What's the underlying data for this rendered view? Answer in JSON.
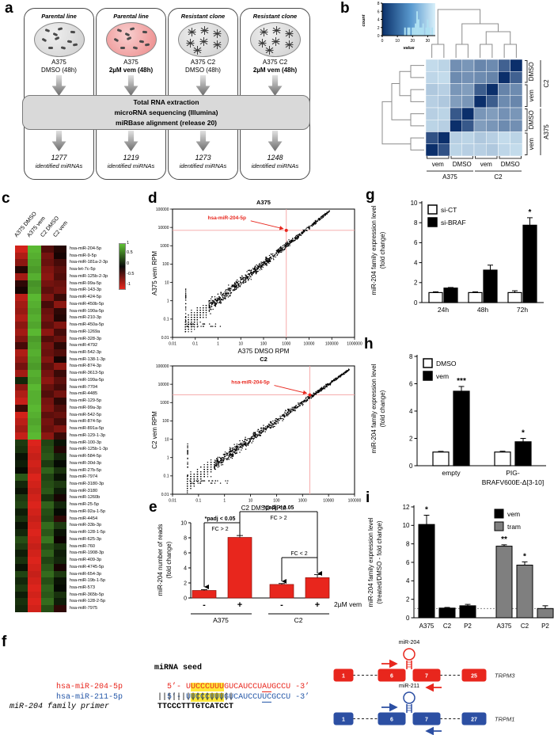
{
  "panels": {
    "a": "a",
    "b": "b",
    "c": "c",
    "d": "d",
    "e": "e",
    "f": "f",
    "g": "g",
    "h": "h",
    "i": "i"
  },
  "panel_a": {
    "columns": [
      {
        "title": "Parental line",
        "cell": "A375",
        "treatment": "DMSO (48h)",
        "treatment_bold": false,
        "dish": "parental",
        "dish_color": "grey",
        "count": "1277",
        "count_label": "identified miRNAs"
      },
      {
        "title": "Parental line",
        "cell": "A375",
        "treatment": "2µM vem (48h)",
        "treatment_bold": true,
        "dish": "parental",
        "dish_color": "pink",
        "count": "1219",
        "count_label": "identified miRNAs"
      },
      {
        "title": "Resistant clone",
        "cell": "A375 C2",
        "treatment": "DMSO (48h)",
        "treatment_bold": false,
        "dish": "resistant",
        "dish_color": "grey",
        "count": "1273",
        "count_label": "identified miRNAs"
      },
      {
        "title": "Resistant clone",
        "cell": "A375 C2",
        "treatment": "2µM vem (48h)",
        "treatment_bold": true,
        "dish": "resistant",
        "dish_color": "grey",
        "count": "1248",
        "count_label": "identified miRNAs"
      }
    ],
    "process_box": [
      "Total RNA extraction",
      "microRNA sequencing (Illumina)",
      "miRBase alignment (release 20)"
    ]
  },
  "panel_b": {
    "color_key": {
      "count_label": "count",
      "value_label": "value",
      "count_ticks": [
        0,
        2,
        4,
        6,
        8
      ],
      "value_ticks": [
        0,
        10,
        20,
        30
      ],
      "value_max": 35,
      "count_max": 8,
      "histogram": [
        [
          15,
          2
        ],
        [
          17,
          2
        ],
        [
          18,
          2
        ],
        [
          20,
          2
        ],
        [
          21,
          2
        ],
        [
          22,
          3
        ],
        [
          23,
          6
        ],
        [
          24,
          4
        ],
        [
          25,
          2
        ],
        [
          26,
          2
        ],
        [
          27,
          3
        ],
        [
          29,
          2
        ],
        [
          30,
          4
        ],
        [
          31,
          2
        ],
        [
          33,
          2
        ]
      ]
    },
    "matrix": [
      [
        0.25,
        0.28,
        0.58,
        0.55,
        0.62,
        0.6,
        0.78,
        1.0
      ],
      [
        0.27,
        0.25,
        0.6,
        0.57,
        0.6,
        0.63,
        1.0,
        0.78
      ],
      [
        0.33,
        0.3,
        0.55,
        0.52,
        0.8,
        1.0,
        0.63,
        0.6
      ],
      [
        0.3,
        0.33,
        0.52,
        0.55,
        1.0,
        0.8,
        0.6,
        0.62
      ],
      [
        0.3,
        0.28,
        0.82,
        1.0,
        0.55,
        0.52,
        0.57,
        0.55
      ],
      [
        0.28,
        0.3,
        1.0,
        0.82,
        0.52,
        0.55,
        0.6,
        0.58
      ],
      [
        0.85,
        1.0,
        0.3,
        0.28,
        0.33,
        0.3,
        0.25,
        0.28
      ],
      [
        1.0,
        0.85,
        0.28,
        0.3,
        0.3,
        0.33,
        0.27,
        0.25
      ]
    ],
    "col_pair_labels": [
      "vem",
      "DMSO",
      "vem",
      "DMSO"
    ],
    "col_group_labels": [
      "A375",
      "C2"
    ],
    "row_pair_labels": [
      "DMSO",
      "vem",
      "DMSO",
      "vem"
    ],
    "row_group_labels": [
      "C2",
      "A375"
    ]
  },
  "panel_c": {
    "col_labels": [
      "A375 DMSO",
      "A375 vem",
      "C2 DMSO",
      "C2 vem"
    ],
    "scale_ticks": [
      "1",
      "0.5",
      "0",
      "-0.5",
      "-1"
    ],
    "rows": [
      {
        "n": "hsa-miR-204-5p",
        "v": [
          -0.9,
          0.95,
          -0.35,
          -0.15
        ]
      },
      {
        "n": "hsa-miR-9-5p",
        "v": [
          -0.75,
          0.9,
          -0.5,
          -0.1
        ]
      },
      {
        "n": "hsa-miR-181a-2-3p",
        "v": [
          -0.6,
          0.85,
          -0.45,
          -0.3
        ]
      },
      {
        "n": "hsa-let-7c-5p",
        "v": [
          -0.15,
          0.8,
          -0.55,
          -0.4
        ]
      },
      {
        "n": "hsa-miR-125b-2-3p",
        "v": [
          -0.7,
          0.9,
          -0.6,
          -0.35
        ]
      },
      {
        "n": "hsa-miR-99a-5p",
        "v": [
          -0.2,
          0.75,
          -0.5,
          -0.45
        ]
      },
      {
        "n": "hsa-miR-143-3p",
        "v": [
          -0.1,
          0.8,
          -0.4,
          -0.5
        ]
      },
      {
        "n": "hsa-miR-424-5p",
        "v": [
          -0.8,
          0.95,
          -0.55,
          -0.25
        ]
      },
      {
        "n": "hsa-miR-450b-5p",
        "v": [
          -0.7,
          0.9,
          -0.3,
          -0.6
        ]
      },
      {
        "n": "hsa-miR-190a-5p",
        "v": [
          -0.65,
          0.85,
          -0.45,
          -0.2
        ]
      },
      {
        "n": "hsa-miR-210-3p",
        "v": [
          -0.75,
          0.9,
          -0.5,
          -0.15
        ]
      },
      {
        "n": "hsa-miR-450a-5p",
        "v": [
          -0.6,
          0.85,
          -0.4,
          -0.55
        ]
      },
      {
        "n": "hsa-miR-1269a",
        "v": [
          -0.7,
          0.95,
          -0.6,
          -0.3
        ]
      },
      {
        "n": "hsa-miR-328-3p",
        "v": [
          -0.55,
          0.8,
          -0.35,
          -0.45
        ]
      },
      {
        "n": "hsa-miR-4792",
        "v": [
          -0.3,
          0.85,
          -0.5,
          -0.2
        ]
      },
      {
        "n": "hsa-miR-542-3p",
        "v": [
          -0.75,
          0.9,
          -0.45,
          -0.35
        ]
      },
      {
        "n": "hsa-miR-138-1-3p",
        "v": [
          -0.65,
          0.85,
          -0.55,
          -0.1
        ]
      },
      {
        "n": "hsa-miR-874-3p",
        "v": [
          -0.5,
          0.8,
          -0.4,
          -0.6
        ]
      },
      {
        "n": "hsa-miR-3613-5p",
        "v": [
          -0.7,
          0.9,
          -0.5,
          -0.25
        ]
      },
      {
        "n": "hsa-miR-199a-5p",
        "v": [
          0.2,
          0.85,
          -0.6,
          -0.4
        ]
      },
      {
        "n": "hsa-miR-7704",
        "v": [
          -0.6,
          0.95,
          -0.45,
          -0.3
        ]
      },
      {
        "n": "hsa-miR-4485",
        "v": [
          -0.75,
          0.9,
          -0.35,
          -0.5
        ]
      },
      {
        "n": "hsa-miR-129-5p",
        "v": [
          -0.85,
          0.9,
          -0.5,
          -0.2
        ]
      },
      {
        "n": "hsa-miR-99a-3p",
        "v": [
          -0.25,
          0.95,
          -0.55,
          -0.35
        ]
      },
      {
        "n": "hsa-miR-542-5p",
        "v": [
          -0.9,
          0.9,
          -0.4,
          -0.45
        ]
      },
      {
        "n": "hsa-miR-874-5p",
        "v": [
          -0.8,
          0.85,
          -0.5,
          -0.3
        ]
      },
      {
        "n": "hsa-miR-891a-5p",
        "v": [
          -0.7,
          0.9,
          -0.45,
          -0.55
        ]
      },
      {
        "n": "hsa-miR-129-1-3p",
        "v": [
          -0.85,
          0.95,
          -0.6,
          -0.25
        ]
      },
      {
        "n": "hsa-miR-100-3p",
        "v": [
          0.3,
          -0.95,
          0.35,
          0.1
        ]
      },
      {
        "n": "hsa-miR-125b-1-3p",
        "v": [
          0.25,
          -0.9,
          0.4,
          -0.15
        ]
      },
      {
        "n": "hsa-miR-584-5p",
        "v": [
          0.1,
          -0.85,
          0.45,
          0.2
        ]
      },
      {
        "n": "hsa-miR-30d-3p",
        "v": [
          0.15,
          -0.9,
          0.3,
          0.05
        ]
      },
      {
        "n": "hsa-miR-27b-5p",
        "v": [
          0.05,
          -0.85,
          0.5,
          0.25
        ]
      },
      {
        "n": "hsa-miR-7974",
        "v": [
          0.45,
          -0.95,
          0.35,
          0.1
        ]
      },
      {
        "n": "hsa-miR-3180-3p",
        "v": [
          0.2,
          -0.9,
          0.4,
          0.3
        ]
      },
      {
        "n": "hsa-miR-3180",
        "v": [
          0.1,
          -0.85,
          0.45,
          0.15
        ]
      },
      {
        "n": "hsa-miR-1260b",
        "v": [
          0.3,
          -0.9,
          0.25,
          -0.1
        ]
      },
      {
        "n": "hsa-miR-25-5p",
        "v": [
          0.35,
          -0.95,
          0.5,
          0.2
        ]
      },
      {
        "n": "hsa-miR-92a-1-5p",
        "v": [
          0.15,
          -0.9,
          0.4,
          0.05
        ]
      },
      {
        "n": "hsa-miR-4454",
        "v": [
          0.25,
          -0.85,
          0.35,
          -0.2
        ]
      },
      {
        "n": "hsa-miR-33b-3p",
        "v": [
          0.1,
          -0.9,
          0.55,
          0.3
        ]
      },
      {
        "n": "hsa-miR-128-1-5p",
        "v": [
          0.2,
          -0.95,
          0.45,
          0.1
        ]
      },
      {
        "n": "hsa-miR-625-3p",
        "v": [
          0.4,
          -0.9,
          0.6,
          -0.05
        ]
      },
      {
        "n": "hsa-miR-760",
        "v": [
          0.3,
          -0.85,
          0.4,
          0.25
        ]
      },
      {
        "n": "hsa-miR-1908-3p",
        "v": [
          0.15,
          -0.9,
          0.5,
          0.15
        ]
      },
      {
        "n": "hsa-miR-409-3p",
        "v": [
          0.25,
          -0.95,
          0.35,
          0.2
        ]
      },
      {
        "n": "hsa-miR-4745-5p",
        "v": [
          0.1,
          -0.9,
          0.45,
          -0.1
        ]
      },
      {
        "n": "hsa-miR-654-3p",
        "v": [
          0.35,
          -0.85,
          0.55,
          0.3
        ]
      },
      {
        "n": "hsa-miR-19b-1-5p",
        "v": [
          0.2,
          -0.9,
          0.4,
          0.1
        ]
      },
      {
        "n": "hsa-miR-573",
        "v": [
          0.3,
          -0.95,
          0.5,
          0.05
        ]
      },
      {
        "n": "hsa-miR-365b-5p",
        "v": [
          0.15,
          -0.9,
          0.45,
          0.25
        ]
      },
      {
        "n": "hsa-miR-128-2-5p",
        "v": [
          0.25,
          -0.95,
          0.55,
          0.15
        ]
      },
      {
        "n": "hsa-miR-7975",
        "v": [
          0.2,
          -0.9,
          0.4,
          -0.2
        ]
      }
    ]
  },
  "panel_d": {
    "charts": [
      {
        "type": "scatter",
        "title": "A375",
        "xlabel": "A375 DMSO RPM",
        "ylabel": "A375 vem RPM",
        "xlog_min": -2,
        "xlog_max": 6,
        "ylog_min": -2,
        "ylog_max": 5,
        "x_ticks": [
          "0.01",
          "0.1",
          "1",
          "10",
          "100",
          "1000",
          "10000",
          "100000",
          "1000000"
        ],
        "y_ticks": [
          "0.01",
          "0.1",
          "1",
          "10",
          "100",
          "1000",
          "10000",
          "100000"
        ],
        "highlight": {
          "label": "hsa-miR-204-5p",
          "x_log": 3.0,
          "y_log": 3.84
        },
        "cloud": {
          "n": 1050,
          "seed": 7,
          "t_min": -1.45,
          "t_max": 4.9,
          "skew": 1.35,
          "noise_low": 0.42,
          "noise_high": 0.05,
          "bias": 0.05,
          "edge_n": 28
        }
      },
      {
        "type": "scatter",
        "title": "C2",
        "xlabel": "C2 DMSO RPM",
        "ylabel": "C2 vem RPM",
        "xlog_min": -2,
        "xlog_max": 5,
        "ylog_min": -2,
        "ylog_max": 5,
        "x_ticks": [
          "0.01",
          "0.1",
          "1",
          "10",
          "100",
          "1000",
          "10000",
          "100000"
        ],
        "y_ticks": [
          "0.01",
          "0.1",
          "1",
          "10",
          "100",
          "1000",
          "10000",
          "100000"
        ],
        "highlight": {
          "label": "hsa-miR-204-5p",
          "x_log": 3.28,
          "y_log": 3.42
        },
        "cloud": {
          "n": 1050,
          "seed": 11,
          "t_min": -1.45,
          "t_max": 4.8,
          "skew": 1.35,
          "noise_low": 0.38,
          "noise_high": 0.04,
          "bias": 0.0,
          "edge_n": 28
        }
      }
    ]
  },
  "panel_e": {
    "chart_data": {
      "type": "bar",
      "ylabel_lines": [
        "miR-204 number of reads",
        "(fold change)"
      ],
      "ylim": [
        0,
        10
      ],
      "yticks": [
        0,
        2,
        4,
        6,
        8,
        10
      ],
      "bar_color": "#e8261d",
      "bars": [
        {
          "x_label": "-",
          "group": "A375",
          "value": 1.0,
          "err": 0.1
        },
        {
          "x_label": "+",
          "group": "A375",
          "value": 8.05,
          "err": 0.25
        },
        {
          "x_label": "-",
          "group": "C2",
          "value": 1.8,
          "err": 0.12
        },
        {
          "x_label": "+",
          "group": "C2",
          "value": 2.7,
          "err": 0.4
        }
      ],
      "group_labels": [
        "A375",
        "C2"
      ],
      "axis_right_label": "2µM vem",
      "annotations": [
        {
          "lines": [
            "*padj < 0.05",
            "FC > 2"
          ]
        },
        {
          "lines": [
            "*padj < 0.05",
            "FC > 2"
          ]
        },
        {
          "lines": [
            "FC < 2"
          ]
        }
      ]
    }
  },
  "panel_f": {
    "seed_header": "miRNA seed",
    "rows": [
      {
        "label": "hsa-miR-204-5p",
        "color": "#e8261d",
        "prefix": "5’- ",
        "seg": {
          "pre": "U",
          "seed": "UCCCUUU",
          "mid": "GUCAUCCU",
          "under": "AU",
          "tail": "GCCU"
        },
        "suffix": " -3’"
      },
      {
        "label": "hsa-miR-211-5p",
        "color": "#2457a8",
        "prefix": "5’- ",
        "seg": {
          "pre": "U",
          "seed": "UCCCUUU",
          "mid": "GUCAUCCU",
          "under": "UC",
          "tail": "GCCU"
        },
        "suffix": " -3’"
      }
    ],
    "pair_bars": "||||||||||||||||",
    "primer_label": "miR-204 family primer",
    "primer_seq": "TTCCCTTTGTCATCCT",
    "genes": [
      {
        "name": "TRPM3",
        "color": "#e8261d",
        "mir_label": "miR-204",
        "exons": [
          "1",
          "6",
          "7",
          "25"
        ]
      },
      {
        "name": "TRPM1",
        "color": "#2c4fa3",
        "mir_label": "miR-211",
        "exons": [
          "1",
          "6",
          "7",
          "27"
        ]
      }
    ]
  },
  "panel_g": {
    "chart_data": {
      "type": "bar",
      "ylabel_lines": [
        "miR-204 family expression level",
        "(fold change)"
      ],
      "ylim": [
        0,
        10
      ],
      "yticks": [
        0,
        2,
        4,
        6,
        8,
        10
      ],
      "legend": [
        {
          "label": "si-CT",
          "fill": "#ffffff"
        },
        {
          "label": "si-BRAF",
          "fill": "#000000"
        }
      ],
      "categories": [
        "24h",
        "48h",
        "72h"
      ],
      "series": [
        {
          "name": "si-CT",
          "fill": "#ffffff",
          "values": [
            1.0,
            1.0,
            1.0
          ],
          "errs": [
            0.08,
            0.07,
            0.18
          ],
          "sig": [
            "",
            "",
            ""
          ]
        },
        {
          "name": "si-BRAF",
          "fill": "#000000",
          "values": [
            1.45,
            3.25,
            7.75
          ],
          "errs": [
            0.06,
            0.5,
            0.75
          ],
          "sig": [
            "",
            "",
            "*"
          ]
        }
      ]
    }
  },
  "panel_h": {
    "chart_data": {
      "type": "bar",
      "ylabel_lines": [
        "miR-204 family expression level",
        "(fold change)"
      ],
      "ylim": [
        0,
        8
      ],
      "yticks": [
        0,
        2,
        4,
        6,
        8
      ],
      "legend": [
        {
          "label": "DMSO",
          "fill": "#ffffff"
        },
        {
          "label": "vem",
          "fill": "#000000"
        }
      ],
      "categories": [
        [
          "empty"
        ],
        [
          "PIG-",
          "BRAFV600E-Δ[3-10]"
        ]
      ],
      "series": [
        {
          "name": "DMSO",
          "fill": "#ffffff",
          "values": [
            1.0,
            1.0
          ],
          "errs": [
            0.05,
            0.06
          ],
          "sig": [
            "",
            ""
          ]
        },
        {
          "name": "vem",
          "fill": "#000000",
          "values": [
            5.45,
            1.75
          ],
          "errs": [
            0.35,
            0.25
          ],
          "sig": [
            "***",
            "*"
          ]
        }
      ]
    }
  },
  "panel_i": {
    "chart_data": {
      "type": "bar",
      "ylabel_lines": [
        "miR-204 family expression level",
        "(treated/DMSO - fold change)"
      ],
      "ylim": [
        0,
        12
      ],
      "yticks": [
        0,
        2,
        4,
        6,
        8,
        10,
        12
      ],
      "baseline": 1,
      "legend": [
        {
          "label": "vem",
          "fill": "#000000"
        },
        {
          "label": "tram",
          "fill": "#7f7f7f"
        }
      ],
      "bars": [
        {
          "label": "A375",
          "value": 10.1,
          "err": 1.0,
          "fill": "#000000",
          "sig": "*"
        },
        {
          "label": "C2",
          "value": 1.05,
          "err": 0.07,
          "fill": "#000000",
          "sig": ""
        },
        {
          "label": "P2",
          "value": 1.3,
          "err": 0.15,
          "fill": "#000000",
          "sig": ""
        },
        {
          "label": "A375",
          "value": 7.75,
          "err": 0.15,
          "fill": "#7f7f7f",
          "sig": "**"
        },
        {
          "label": "C2",
          "value": 5.7,
          "err": 0.35,
          "fill": "#7f7f7f",
          "sig": "*"
        },
        {
          "label": "P2",
          "value": 1.0,
          "err": 0.3,
          "fill": "#7f7f7f",
          "sig": ""
        }
      ]
    }
  }
}
